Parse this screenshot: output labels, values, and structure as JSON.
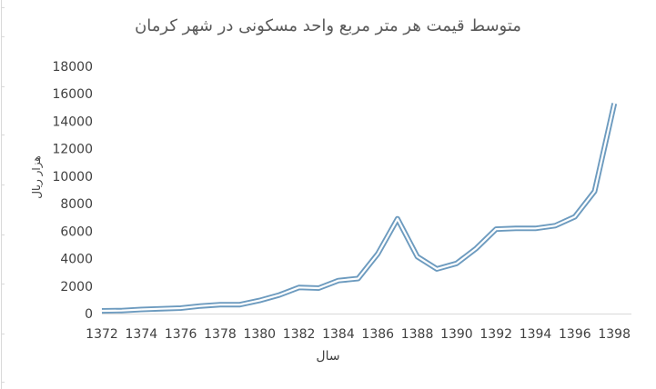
{
  "chart_data": {
    "type": "line",
    "title": "متوسط قیمت هر متر مربع  واحد  مسکونی در شهر کرمان",
    "xlabel": "سال",
    "ylabel": "هزار ریال",
    "ylim": [
      0,
      18000
    ],
    "yticks": [
      0,
      2000,
      4000,
      6000,
      8000,
      10000,
      12000,
      14000,
      16000,
      18000
    ],
    "xticks": [
      1372,
      1374,
      1376,
      1378,
      1380,
      1382,
      1384,
      1386,
      1388,
      1390,
      1392,
      1394,
      1396,
      1398
    ],
    "grid": false,
    "legend": "none",
    "line_color": "#6d9bbf",
    "x": [
      1372,
      1373,
      1374,
      1375,
      1376,
      1377,
      1378,
      1379,
      1380,
      1381,
      1382,
      1383,
      1384,
      1385,
      1386,
      1387,
      1388,
      1389,
      1390,
      1391,
      1392,
      1393,
      1394,
      1395,
      1396,
      1397,
      1398
    ],
    "series": [
      {
        "values": [
          200,
          220,
          300,
          350,
          400,
          550,
          650,
          650,
          950,
          1350,
          1900,
          1850,
          2400,
          2550,
          4350,
          6900,
          4150,
          3250,
          3650,
          4750,
          6150,
          6200,
          6200,
          6400,
          7050,
          8900,
          15300
        ]
      }
    ]
  }
}
